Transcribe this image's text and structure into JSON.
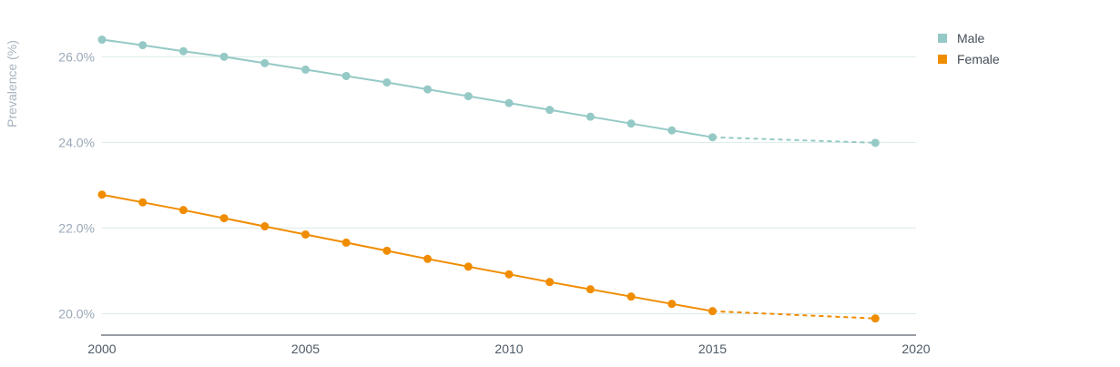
{
  "chart_data": {
    "type": "line",
    "ylabel": "Prevalence (%)",
    "xlabel": "",
    "xlim": [
      2000,
      2020
    ],
    "ylim": [
      19.5,
      26.9
    ],
    "x_ticks": [
      2000,
      2005,
      2010,
      2015,
      2020
    ],
    "y_ticks": [
      20,
      22,
      24,
      26
    ],
    "x_tick_labels": [
      "2000",
      "2005",
      "2010",
      "2015",
      "2020"
    ],
    "y_tick_labels": [
      "20.0%",
      "22.0%",
      "24.0%",
      "26.0%"
    ],
    "grid": true,
    "legend_position": "top-right",
    "series": [
      {
        "name": "Male",
        "color": "#95c9c5",
        "points": [
          {
            "x": 2000,
            "y": 26.4
          },
          {
            "x": 2001,
            "y": 26.27
          },
          {
            "x": 2002,
            "y": 26.13
          },
          {
            "x": 2003,
            "y": 26.0
          },
          {
            "x": 2004,
            "y": 25.85
          },
          {
            "x": 2005,
            "y": 25.7
          },
          {
            "x": 2006,
            "y": 25.55
          },
          {
            "x": 2007,
            "y": 25.4
          },
          {
            "x": 2008,
            "y": 25.24
          },
          {
            "x": 2009,
            "y": 25.08
          },
          {
            "x": 2010,
            "y": 24.92
          },
          {
            "x": 2011,
            "y": 24.76
          },
          {
            "x": 2012,
            "y": 24.6
          },
          {
            "x": 2013,
            "y": 24.44
          },
          {
            "x": 2014,
            "y": 24.28
          },
          {
            "x": 2015,
            "y": 24.12
          }
        ],
        "projection": [
          {
            "x": 2015,
            "y": 24.12
          },
          {
            "x": 2019,
            "y": 23.99
          }
        ]
      },
      {
        "name": "Female",
        "color": "#f08c00",
        "points": [
          {
            "x": 2000,
            "y": 22.78
          },
          {
            "x": 2001,
            "y": 22.6
          },
          {
            "x": 2002,
            "y": 22.42
          },
          {
            "x": 2003,
            "y": 22.23
          },
          {
            "x": 2004,
            "y": 22.04
          },
          {
            "x": 2005,
            "y": 21.85
          },
          {
            "x": 2006,
            "y": 21.66
          },
          {
            "x": 2007,
            "y": 21.47
          },
          {
            "x": 2008,
            "y": 21.28
          },
          {
            "x": 2009,
            "y": 21.1
          },
          {
            "x": 2010,
            "y": 20.92
          },
          {
            "x": 2011,
            "y": 20.74
          },
          {
            "x": 2012,
            "y": 20.57
          },
          {
            "x": 2013,
            "y": 20.4
          },
          {
            "x": 2014,
            "y": 20.23
          },
          {
            "x": 2015,
            "y": 20.06
          }
        ],
        "projection": [
          {
            "x": 2015,
            "y": 20.06
          },
          {
            "x": 2019,
            "y": 19.89
          }
        ]
      }
    ]
  }
}
